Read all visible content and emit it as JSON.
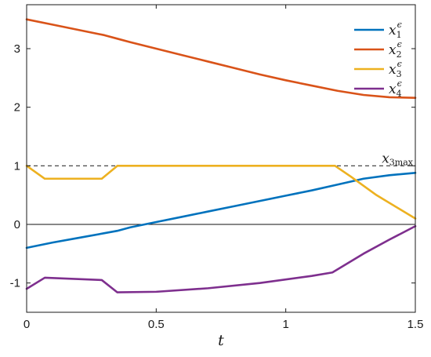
{
  "chart_data": {
    "type": "line",
    "title": "",
    "xlabel": "t",
    "ylabel": "",
    "xlim": [
      0,
      1.5
    ],
    "ylim": [
      -1.5,
      3.75
    ],
    "xticks": [
      0,
      0.5,
      1,
      1.5
    ],
    "xtick_labels": [
      "0",
      "0.5",
      "1",
      "1.5"
    ],
    "yticks": [
      -1,
      0,
      1,
      2,
      3
    ],
    "ytick_labels": [
      "-1",
      "0",
      "1",
      "2",
      "3"
    ],
    "grid": false,
    "legend_position": "top-right",
    "series": [
      {
        "name": "x1",
        "superscript": "ϵ",
        "subscript": "1",
        "color": "#0072bd",
        "x": [
          0,
          0.1,
          0.2,
          0.3,
          0.35,
          0.4,
          0.5,
          0.6,
          0.7,
          0.8,
          0.9,
          1.0,
          1.1,
          1.2,
          1.3,
          1.4,
          1.5
        ],
        "y": [
          -0.4,
          -0.31,
          -0.23,
          -0.15,
          -0.11,
          -0.05,
          0.04,
          0.13,
          0.22,
          0.31,
          0.4,
          0.49,
          0.58,
          0.68,
          0.78,
          0.84,
          0.88
        ]
      },
      {
        "name": "x2",
        "superscript": "ϵ",
        "subscript": "2",
        "color": "#d95319",
        "x": [
          0,
          0.1,
          0.2,
          0.3,
          0.35,
          0.4,
          0.5,
          0.6,
          0.7,
          0.8,
          0.9,
          1.0,
          1.1,
          1.2,
          1.3,
          1.4,
          1.5
        ],
        "y": [
          3.5,
          3.41,
          3.32,
          3.23,
          3.17,
          3.11,
          3.0,
          2.89,
          2.78,
          2.67,
          2.56,
          2.46,
          2.37,
          2.28,
          2.21,
          2.17,
          2.16
        ]
      },
      {
        "name": "x3",
        "superscript": "ϵ",
        "subscript": "3",
        "color": "#edb120",
        "x": [
          0,
          0.07,
          0.29,
          0.35,
          0.5,
          1.0,
          1.19,
          1.25,
          1.35,
          1.5
        ],
        "y": [
          1.0,
          0.78,
          0.78,
          1.0,
          1.0,
          1.0,
          1.0,
          0.82,
          0.5,
          0.1
        ]
      },
      {
        "name": "x4",
        "superscript": "ϵ",
        "subscript": "4",
        "color": "#7e2f8e",
        "x": [
          0,
          0.07,
          0.29,
          0.35,
          0.5,
          0.7,
          0.9,
          1.1,
          1.18,
          1.3,
          1.4,
          1.5
        ],
        "y": [
          -1.1,
          -0.91,
          -0.95,
          -1.16,
          -1.15,
          -1.09,
          -1.0,
          -0.88,
          -0.82,
          -0.5,
          -0.26,
          -0.03
        ]
      }
    ],
    "reference_lines": [
      {
        "y": 1.0,
        "style": "dashed",
        "color": "#333333",
        "label_main": "x",
        "label_sub": "3max"
      },
      {
        "y": 0.0,
        "style": "solid",
        "color": "#111111"
      }
    ]
  },
  "colors": {
    "axis": "#1a1a1a",
    "background": "#ffffff"
  }
}
